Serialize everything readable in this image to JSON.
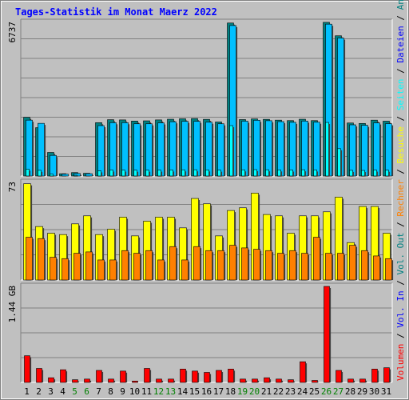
{
  "chart_data": {
    "title": "Tages-Statistik im Monat Maerz 2022",
    "days": [
      "1",
      "2",
      "3",
      "4",
      "5",
      "6",
      "7",
      "8",
      "9",
      "10",
      "11",
      "12",
      "13",
      "14",
      "15",
      "16",
      "17",
      "18",
      "19",
      "20",
      "21",
      "22",
      "23",
      "24",
      "25",
      "26",
      "27",
      "28",
      "29",
      "30",
      "31"
    ],
    "weekend_days": [
      "5",
      "6",
      "12",
      "13",
      "19",
      "20",
      "26",
      "27"
    ],
    "panels": [
      {
        "type": "bar",
        "max_label": "6737",
        "ymax": 6737,
        "series": [
          {
            "name": "Anfragen",
            "color": "#008080",
            "values": [
              2575,
              2120,
              1035,
              100,
              150,
              120,
              2340,
              2470,
              2460,
              2410,
              2420,
              2460,
              2490,
              2510,
              2520,
              2485,
              2370,
              6710,
              2475,
              2505,
              2485,
              2450,
              2430,
              2490,
              2430,
              6740,
              6150,
              2325,
              2305,
              2450,
              2405
            ]
          },
          {
            "name": "Dateien",
            "color": "#00c0ff",
            "values": [
              2450,
              2310,
              905,
              80,
              110,
              100,
              2210,
              2340,
              2340,
              2290,
              2290,
              2330,
              2380,
              2400,
              2400,
              2360,
              2290,
              6600,
              2405,
              2445,
              2425,
              2385,
              2355,
              2410,
              2360,
              6660,
              6050,
              2245,
              2225,
              2330,
              2295
            ]
          },
          {
            "name": "Seiten",
            "color": "#00ffff",
            "values": [
              300,
              250,
              80,
              0,
              10,
              0,
              230,
              265,
              260,
              255,
              255,
              260,
              268,
              272,
              275,
              270,
              258,
              2210,
              272,
              280,
              275,
              270,
              265,
              275,
              268,
              2350,
              1200,
              250,
              245,
              262,
              255
            ]
          }
        ]
      },
      {
        "type": "bar",
        "max_label": "73",
        "ymax": 73,
        "series": [
          {
            "name": "Besuche",
            "color": "#ffff00",
            "values": [
              72,
              40,
              35,
              34,
              42,
              48,
              34,
              38,
              47,
              33,
              44,
              47,
              47,
              39,
              61,
              57,
              33,
              52,
              54,
              65,
              49,
              48,
              35,
              48,
              48,
              51,
              62,
              28,
              55,
              55,
              35
            ]
          },
          {
            "name": "Rechner",
            "color": "#ff8000",
            "values": [
              32,
              31,
              17,
              16,
              20,
              21,
              15,
              15,
              22,
              20,
              22,
              15,
              25,
              15,
              25,
              22,
              22,
              26,
              24,
              23,
              22,
              20,
              22,
              20,
              32,
              20,
              20,
              26,
              22,
              18,
              16
            ]
          }
        ]
      },
      {
        "type": "bar",
        "max_label": "1.44 GB",
        "ymax": 1.44,
        "series": [
          {
            "name": "Volumen",
            "color": "#ff0000",
            "values": [
              0.4,
              0.21,
              0.07,
              0.19,
              0.04,
              0.05,
              0.18,
              0.05,
              0.17,
              0.02,
              0.21,
              0.05,
              0.05,
              0.2,
              0.17,
              0.15,
              0.18,
              0.2,
              0.05,
              0.05,
              0.07,
              0.05,
              0.04,
              0.31,
              0.03,
              1.44,
              0.18,
              0.05,
              0.05,
              0.2,
              0.22
            ]
          }
        ]
      }
    ],
    "right_legend": [
      {
        "text": "Volumen",
        "color": "#ff0000"
      },
      {
        "text": " / ",
        "color": "#000000"
      },
      {
        "text": "Vol. In",
        "color": "#0000ff"
      },
      {
        "text": " / ",
        "color": "#000000"
      },
      {
        "text": "Vol. Out",
        "color": "#008080"
      },
      {
        "text": " / ",
        "color": "#000000"
      },
      {
        "text": "Rechner",
        "color": "#ff8000"
      },
      {
        "text": " / ",
        "color": "#000000"
      },
      {
        "text": "Besuche",
        "color": "#ffff00"
      },
      {
        "text": " / ",
        "color": "#000000"
      },
      {
        "text": "Seiten",
        "color": "#00ffff"
      },
      {
        "text": " / ",
        "color": "#000000"
      },
      {
        "text": "Dateien",
        "color": "#0000ff"
      },
      {
        "text": " / ",
        "color": "#000000"
      },
      {
        "text": "Anfragen",
        "color": "#008080"
      }
    ],
    "colors": {
      "title": "#0000ff",
      "plot_bg": "#c0c0c0",
      "grid": "#808080",
      "weekend_label": "#008000",
      "weekday_label": "#000000"
    }
  }
}
